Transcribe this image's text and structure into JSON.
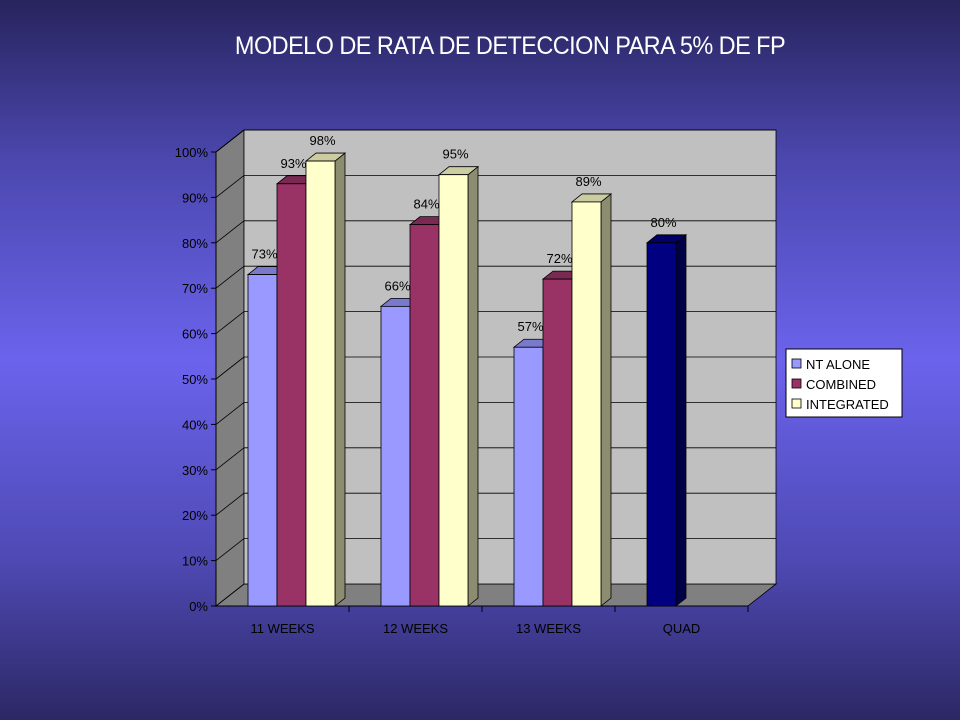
{
  "slide": {
    "title": "MODELO  DE RATA DE DETECCION PARA 5% DE FP"
  },
  "colors": {
    "background": "#5a55d6",
    "plot_back": "#c0c0c0",
    "plot_floor": "#808080",
    "bar_nt_alone": "#9999ff",
    "bar_combined": "#993366",
    "bar_integrated": "#ffffcc",
    "bar_quad": "#000080"
  },
  "chart_data": {
    "type": "bar",
    "title": "",
    "xlabel": "",
    "ylabel": "",
    "ylim": [
      0,
      1
    ],
    "ytick_labels": [
      "0%",
      "10%",
      "20%",
      "30%",
      "40%",
      "50%",
      "60%",
      "70%",
      "80%",
      "90%",
      "100%"
    ],
    "categories": [
      "11 WEEKS",
      "12 WEEKS",
      "13 WEEKS",
      "QUAD"
    ],
    "series": [
      {
        "name": "NT ALONE",
        "color": "#9999ff",
        "values": [
          0.73,
          0.66,
          0.57,
          null
        ],
        "labels": [
          "73%",
          "66%",
          "57%",
          null
        ]
      },
      {
        "name": "COMBINED",
        "color": "#993366",
        "values": [
          0.93,
          0.84,
          0.72,
          null
        ],
        "labels": [
          "93%",
          "84%",
          "72%",
          null
        ]
      },
      {
        "name": "INTEGRATED",
        "color": "#ffffcc",
        "values": [
          0.98,
          0.95,
          0.89,
          null
        ],
        "labels": [
          "98%",
          "95%",
          "89%",
          null
        ]
      }
    ],
    "extra_bar": {
      "category": "QUAD",
      "value": 0.8,
      "label": "80%",
      "color": "#000080"
    },
    "legend_position": "right",
    "grid": true,
    "style": "3d-clustered-column"
  }
}
